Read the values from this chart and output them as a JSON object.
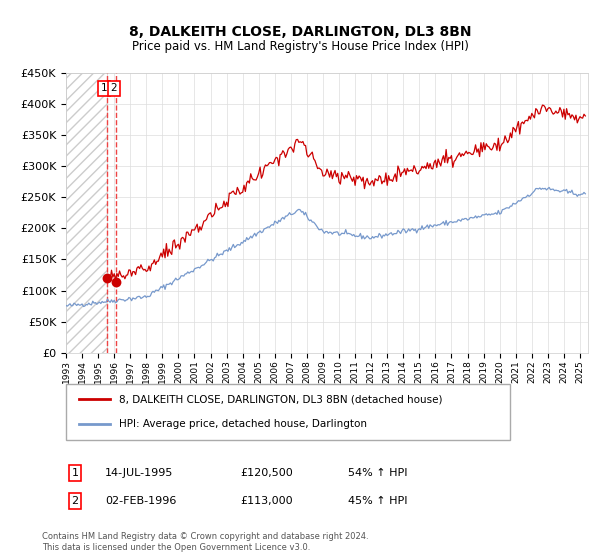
{
  "title": "8, DALKEITH CLOSE, DARLINGTON, DL3 8BN",
  "subtitle": "Price paid vs. HM Land Registry's House Price Index (HPI)",
  "transactions": [
    {
      "date": "14-JUL-1995",
      "price": 120500,
      "label": "1",
      "x_year": 1995.54
    },
    {
      "date": "02-FEB-1996",
      "price": 113000,
      "label": "2",
      "x_year": 1996.09
    }
  ],
  "hpi_line_color": "#7799cc",
  "price_line_color": "#cc0000",
  "dot_color": "#cc0000",
  "dashed_line_color": "#ee4444",
  "ylim": [
    0,
    450000
  ],
  "yticks": [
    0,
    50000,
    100000,
    150000,
    200000,
    250000,
    300000,
    350000,
    400000,
    450000
  ],
  "xlim_start": 1993.0,
  "xlim_end": 2025.5,
  "hatch_end_year": 1995.54,
  "legend_labels": [
    "8, DALKEITH CLOSE, DARLINGTON, DL3 8BN (detached house)",
    "HPI: Average price, detached house, Darlington"
  ],
  "footer_text": "Contains HM Land Registry data © Crown copyright and database right 2024.\nThis data is licensed under the Open Government Licence v3.0.",
  "transaction_rows": [
    {
      "num": "1",
      "date": "14-JUL-1995",
      "price": "£120,500",
      "change": "54% ↑ HPI"
    },
    {
      "num": "2",
      "date": "02-FEB-1996",
      "price": "£113,000",
      "change": "45% ↑ HPI"
    }
  ]
}
